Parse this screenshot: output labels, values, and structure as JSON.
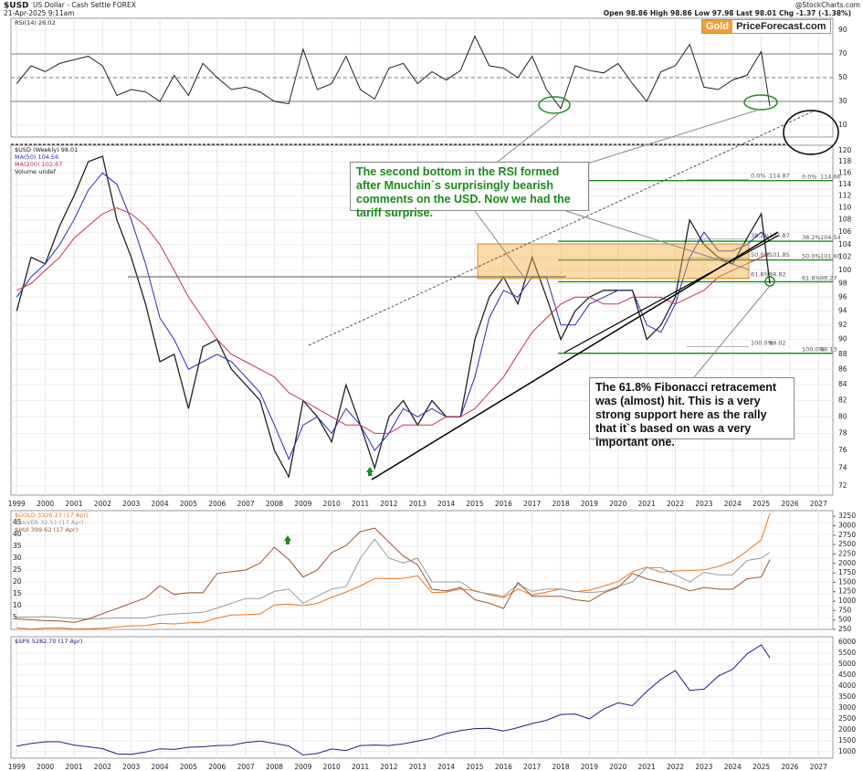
{
  "header": {
    "symbol": "$USD",
    "name": "US Dollar - Cash Settle FOREX",
    "date": "21-Apr-2025 9:11am",
    "quote": "Open 98.86 High 98.86 Low 97.98 Last 98.01 Chg -1.37 (-1.38%)",
    "source": "@StockCharts.com"
  },
  "logo": {
    "left": "Gold",
    "right": "PriceForecast.com"
  },
  "annotations": [
    "The second bottom in the RSI formed after Mnuchin`s surprisingly bearish comments on the USD. Now we had the tariff surprise.",
    "The 61.8% Fibonacci retracement was (almost) hit. This is a very strong support here as the rally that it`s based on was a very important one."
  ],
  "chart_data": [
    {
      "type": "line",
      "yaxis_side": "right",
      "grid": true,
      "x": [
        1999,
        1999.5,
        2000,
        2000.5,
        2001,
        2001.5,
        2002,
        2002.5,
        2003,
        2003.5,
        2004,
        2004.5,
        2005,
        2005.5,
        2006,
        2006.5,
        2007,
        2007.5,
        2008,
        2008.5,
        2009,
        2009.5,
        2010,
        2010.5,
        2011,
        2011.5,
        2012,
        2012.5,
        2013,
        2013.5,
        2014,
        2014.5,
        2015,
        2015.5,
        2016,
        2016.5,
        2017,
        2017.5,
        2018,
        2018.5,
        2019,
        2019.5,
        2020,
        2020.5,
        2021,
        2021.5,
        2022,
        2022.5,
        2023,
        2023.5,
        2024,
        2024.5,
        2025,
        2025.3
      ],
      "xlim": [
        1998.8,
        2027.5
      ],
      "xticks": [
        1999,
        2000,
        2001,
        2002,
        2003,
        2004,
        2005,
        2006,
        2007,
        2008,
        2009,
        2010,
        2011,
        2012,
        2013,
        2014,
        2015,
        2016,
        2017,
        2018,
        2019,
        2020,
        2021,
        2022,
        2023,
        2024,
        2025,
        2026,
        2027
      ],
      "ylim": [
        0,
        100
      ],
      "yticks": [
        10,
        30,
        50,
        70,
        90
      ],
      "levels": [
        30,
        50,
        70
      ],
      "series": [
        {
          "name": "RSI(14) 26.02",
          "color": "#222222",
          "values": [
            45,
            60,
            55,
            62,
            65,
            68,
            60,
            35,
            40,
            38,
            30,
            52,
            35,
            62,
            50,
            40,
            42,
            38,
            30,
            28,
            74,
            40,
            45,
            68,
            40,
            32,
            58,
            62,
            45,
            55,
            48,
            56,
            85,
            60,
            58,
            50,
            68,
            40,
            24,
            60,
            56,
            54,
            62,
            45,
            30,
            55,
            60,
            78,
            42,
            40,
            48,
            52,
            72,
            26.02
          ]
        }
      ]
    },
    {
      "type": "line",
      "yaxis_side": "right",
      "grid": true,
      "log_scale": true,
      "volume_label": "Volume undef",
      "x": [
        1999,
        1999.5,
        2000,
        2000.5,
        2001,
        2001.5,
        2002,
        2002.5,
        2003,
        2003.5,
        2004,
        2004.5,
        2005,
        2005.5,
        2006,
        2006.5,
        2007,
        2007.5,
        2008,
        2008.5,
        2009,
        2009.5,
        2010,
        2010.5,
        2011,
        2011.5,
        2012,
        2012.5,
        2013,
        2013.5,
        2014,
        2014.5,
        2015,
        2015.5,
        2016,
        2016.5,
        2017,
        2017.5,
        2018,
        2018.5,
        2019,
        2019.5,
        2020,
        2020.5,
        2021,
        2021.5,
        2022,
        2022.5,
        2023,
        2023.5,
        2024,
        2024.5,
        2025,
        2025.3
      ],
      "xlim": [
        1998.8,
        2027.5
      ],
      "xticks": [
        1999,
        2000,
        2001,
        2002,
        2003,
        2004,
        2005,
        2006,
        2007,
        2008,
        2009,
        2010,
        2011,
        2012,
        2013,
        2014,
        2015,
        2016,
        2017,
        2018,
        2019,
        2020,
        2021,
        2022,
        2023,
        2024,
        2025,
        2026,
        2027
      ],
      "ylim": [
        71,
        121
      ],
      "yticks": [
        72,
        74,
        76,
        78,
        80,
        82,
        84,
        86,
        88,
        90,
        92,
        94,
        96,
        98,
        100,
        102,
        104,
        106,
        108,
        110,
        112,
        114,
        116,
        118,
        120
      ],
      "series": [
        {
          "name": "$USD (Weekly) 98.01",
          "color": "#222222",
          "values": [
            94,
            102,
            101,
            107,
            112,
            118,
            119,
            108,
            102,
            95,
            87,
            88,
            81,
            89,
            90,
            86,
            84,
            82,
            76,
            73,
            82,
            80,
            77,
            84,
            79,
            74,
            80,
            82,
            79,
            82,
            80,
            80,
            90,
            96,
            99,
            95,
            102,
            96,
            90,
            94,
            96,
            97,
            97,
            97,
            90,
            92,
            96,
            108,
            104,
            102,
            101,
            105,
            109,
            98.01
          ]
        },
        {
          "name": "MA(50) 104.56",
          "color": "#2a2ab8",
          "values": [
            96,
            99,
            101,
            104,
            108,
            113,
            116,
            114,
            108,
            101,
            93,
            90,
            86,
            87,
            88,
            87,
            85,
            83,
            79,
            75,
            79,
            80,
            78,
            81,
            79,
            76,
            78,
            81,
            80,
            81,
            80,
            80,
            85,
            93,
            97,
            96,
            99,
            99,
            92,
            92,
            95,
            96,
            97,
            97,
            92,
            91,
            95,
            102,
            106,
            103,
            103,
            104,
            106,
            104.56
          ]
        },
        {
          "name": "MA(200) 102.67",
          "color": "#c8324e",
          "values": [
            97,
            98,
            100,
            102,
            105,
            107,
            109,
            110,
            109,
            107,
            104,
            100,
            96,
            93,
            90,
            88,
            87,
            86,
            85,
            83,
            82,
            81,
            80,
            79,
            79,
            78,
            78,
            79,
            79,
            79,
            80,
            80,
            81,
            83,
            85,
            88,
            91,
            93,
            95,
            96,
            96,
            95,
            95,
            96,
            96,
            96,
            95,
            96,
            97,
            99,
            100,
            101,
            102,
            102.67
          ]
        }
      ],
      "fib_sets": [
        [
          {
            "label": "0.0%",
            "value": 114.87
          },
          {
            "label": "38.2%",
            "value": 104.87
          },
          {
            "label": "50.0%",
            "value": 101.85
          },
          {
            "label": "61.8%",
            "value": 98.82
          },
          {
            "label": "100.0%",
            "value": 89.02
          }
        ],
        [
          {
            "label": "0.0%",
            "value": 114.66
          },
          {
            "label": "38.2%",
            "value": 104.54
          },
          {
            "label": "50.0%",
            "value": 101.6,
            "value_label": "101.60"
          },
          {
            "label": "61.8%",
            "value": 98.27
          },
          {
            "label": "100.0%",
            "value": 88.13
          }
        ]
      ]
    },
    {
      "type": "line",
      "yaxis_side": "left",
      "grid": true,
      "x": [
        1999,
        1999.5,
        2000,
        2000.5,
        2001,
        2001.5,
        2002,
        2002.5,
        2003,
        2003.5,
        2004,
        2004.5,
        2005,
        2005.5,
        2006,
        2006.5,
        2007,
        2007.5,
        2008,
        2008.5,
        2009,
        2009.5,
        2010,
        2010.5,
        2011,
        2011.5,
        2012,
        2012.5,
        2013,
        2013.5,
        2014,
        2014.5,
        2015,
        2015.5,
        2016,
        2016.5,
        2017,
        2017.5,
        2018,
        2018.5,
        2019,
        2019.5,
        2020,
        2020.5,
        2021,
        2021.5,
        2022,
        2022.5,
        2023,
        2023.5,
        2024,
        2024.5,
        2025,
        2025.3
      ],
      "xlim": [
        1998.8,
        2027.5
      ],
      "xticks": [
        1999,
        2000,
        2001,
        2002,
        2003,
        2004,
        2005,
        2006,
        2007,
        2008,
        2009,
        2010,
        2011,
        2012,
        2013,
        2014,
        2015,
        2016,
        2017,
        2018,
        2019,
        2020,
        2021,
        2022,
        2023,
        2024,
        2025,
        2026,
        2027
      ],
      "ylim": [
        0,
        50
      ],
      "yticks": [
        5,
        10,
        15,
        20,
        25,
        30,
        35,
        40,
        45
      ],
      "y2lim": [
        250,
        3400
      ],
      "y2ticks": [
        250,
        500,
        750,
        1000,
        1250,
        1500,
        1750,
        2000,
        2250,
        2500,
        2750,
        3000,
        3250
      ],
      "y3lim": [
        0,
        680
      ],
      "series": [
        {
          "name": "$GOLD 3326.27 (17 Apr)",
          "color": "#e8771e",
          "axis": "y2",
          "values": [
            290,
            260,
            285,
            290,
            265,
            270,
            280,
            315,
            345,
            350,
            410,
            395,
            425,
            435,
            550,
            630,
            640,
            660,
            900,
            920,
            880,
            940,
            1100,
            1240,
            1400,
            1600,
            1600,
            1600,
            1670,
            1230,
            1240,
            1320,
            1280,
            1170,
            1090,
            1320,
            1160,
            1240,
            1320,
            1250,
            1290,
            1400,
            1520,
            1780,
            1900,
            1770,
            1800,
            1810,
            1830,
            1920,
            2060,
            2330,
            2630,
            3326.27
          ]
        },
        {
          "name": "$SILVER 32.51 (17 Apr)",
          "color": "#9a9a9a",
          "values": [
            5.2,
            5.2,
            5.4,
            5,
            4.6,
            4.3,
            4.6,
            4.8,
            4.8,
            4.8,
            6,
            6.5,
            6.8,
            7.2,
            9,
            11,
            13,
            13,
            16,
            17,
            11,
            14,
            17,
            18,
            30,
            38,
            30,
            28,
            30,
            20,
            20,
            20,
            16,
            15,
            14,
            19,
            16,
            17,
            17,
            16,
            15.5,
            16,
            18,
            20,
            26,
            26,
            23,
            20,
            24,
            23,
            23,
            29,
            30,
            32.51
          ]
        },
        {
          "name": "$HUI 399.62 (17 Apr)",
          "color": "#a0522d",
          "axis": "y3",
          "values": [
            60,
            55,
            50,
            48,
            40,
            60,
            90,
            120,
            150,
            180,
            250,
            200,
            210,
            210,
            320,
            330,
            340,
            380,
            470,
            400,
            300,
            340,
            440,
            480,
            560,
            580,
            500,
            420,
            370,
            230,
            220,
            240,
            170,
            150,
            120,
            270,
            190,
            190,
            190,
            170,
            160,
            210,
            240,
            320,
            290,
            270,
            250,
            220,
            240,
            230,
            230,
            290,
            300,
            399.62
          ]
        }
      ]
    },
    {
      "type": "line",
      "yaxis_side": "right",
      "grid": true,
      "x": [
        1999,
        1999.5,
        2000,
        2000.5,
        2001,
        2001.5,
        2002,
        2002.5,
        2003,
        2003.5,
        2004,
        2004.5,
        2005,
        2005.5,
        2006,
        2006.5,
        2007,
        2007.5,
        2008,
        2008.5,
        2009,
        2009.5,
        2010,
        2010.5,
        2011,
        2011.5,
        2012,
        2012.5,
        2013,
        2013.5,
        2014,
        2014.5,
        2015,
        2015.5,
        2016,
        2016.5,
        2017,
        2017.5,
        2018,
        2018.5,
        2019,
        2019.5,
        2020,
        2020.5,
        2021,
        2021.5,
        2022,
        2022.5,
        2023,
        2023.5,
        2024,
        2024.5,
        2025,
        2025.3
      ],
      "xlim": [
        1998.8,
        2027.5
      ],
      "xticks": [
        1999,
        2000,
        2001,
        2002,
        2003,
        2004,
        2005,
        2006,
        2007,
        2008,
        2009,
        2010,
        2011,
        2012,
        2013,
        2014,
        2015,
        2016,
        2017,
        2018,
        2019,
        2020,
        2021,
        2022,
        2023,
        2024,
        2025,
        2026,
        2027
      ],
      "ylim": [
        700,
        6250
      ],
      "yticks": [
        1000,
        1500,
        2000,
        2500,
        3000,
        3500,
        4000,
        4500,
        5000,
        5500,
        6000
      ],
      "series": [
        {
          "name": "$SPX 5282.70 (17 Apr)",
          "color": "#1c2380",
          "values": [
            1250,
            1370,
            1450,
            1450,
            1300,
            1220,
            1140,
            900,
            880,
            980,
            1130,
            1100,
            1200,
            1220,
            1280,
            1290,
            1420,
            1480,
            1380,
            1260,
            850,
            920,
            1120,
            1050,
            1280,
            1300,
            1280,
            1360,
            1480,
            1610,
            1830,
            1960,
            2050,
            2070,
            1940,
            2100,
            2280,
            2430,
            2700,
            2720,
            2500,
            2950,
            3230,
            3100,
            3750,
            4300,
            4700,
            3800,
            3850,
            4450,
            4760,
            5460,
            5880,
            5282.7
          ]
        }
      ]
    }
  ]
}
